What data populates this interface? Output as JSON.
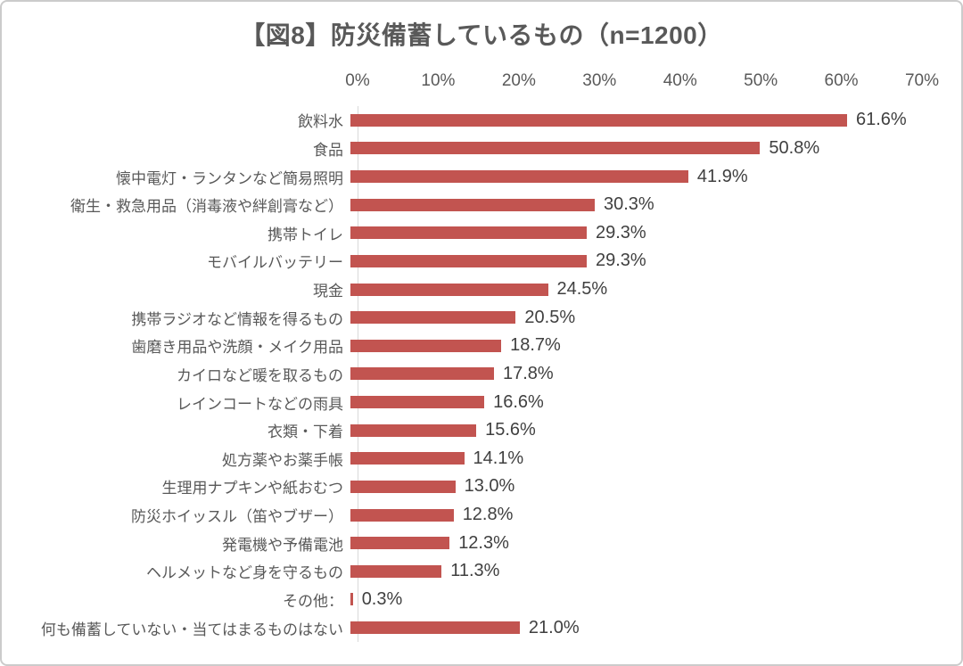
{
  "chart_data": {
    "type": "bar",
    "orientation": "horizontal",
    "title": "【図8】防災備蓄しているもの（n=1200）",
    "sample_size_note": "n=1200",
    "categories": [
      "飲料水",
      "食品",
      "懐中電灯・ランタンなど簡易照明",
      "衛生・救急用品（消毒液や絆創膏など）",
      "携帯トイレ",
      "モバイルバッテリー",
      "現金",
      "携帯ラジオなど情報を得るもの",
      "歯磨き用品や洗顔・メイク用品",
      "カイロなど暖を取るもの",
      "レインコートなどの雨具",
      "衣類・下着",
      "処方薬やお薬手帳",
      "生理用ナプキンや紙おむつ",
      "防災ホイッスル（笛やブザー）",
      "発電機や予備電池",
      "ヘルメットなど身を守るもの",
      "その他：",
      "何も備蓄していない・当てはまるものはない"
    ],
    "values": [
      61.6,
      50.8,
      41.9,
      30.3,
      29.3,
      29.3,
      24.5,
      20.5,
      18.7,
      17.8,
      16.6,
      15.6,
      14.1,
      13.0,
      12.8,
      12.3,
      11.3,
      0.3,
      21.0
    ],
    "value_labels": [
      "61.6%",
      "50.8%",
      "41.9%",
      "30.3%",
      "29.3%",
      "29.3%",
      "24.5%",
      "20.5%",
      "18.7%",
      "17.8%",
      "16.6%",
      "15.6%",
      "14.1%",
      "13.0%",
      "12.8%",
      "12.3%",
      "11.3%",
      "0.3%",
      "21.0%"
    ],
    "x_ticks": [
      "0%",
      "10%",
      "20%",
      "30%",
      "40%",
      "50%",
      "60%",
      "70%"
    ],
    "xlim": [
      0,
      70
    ],
    "xlabel": "",
    "ylabel": "",
    "grid": "off",
    "legend": "none",
    "data_labels": "outside-end",
    "bar_color": "#C25450",
    "title_color": "#595959",
    "category_label_color": "#595959",
    "value_label_color": "#404040",
    "axis_line_color": "#D9D9D9"
  }
}
